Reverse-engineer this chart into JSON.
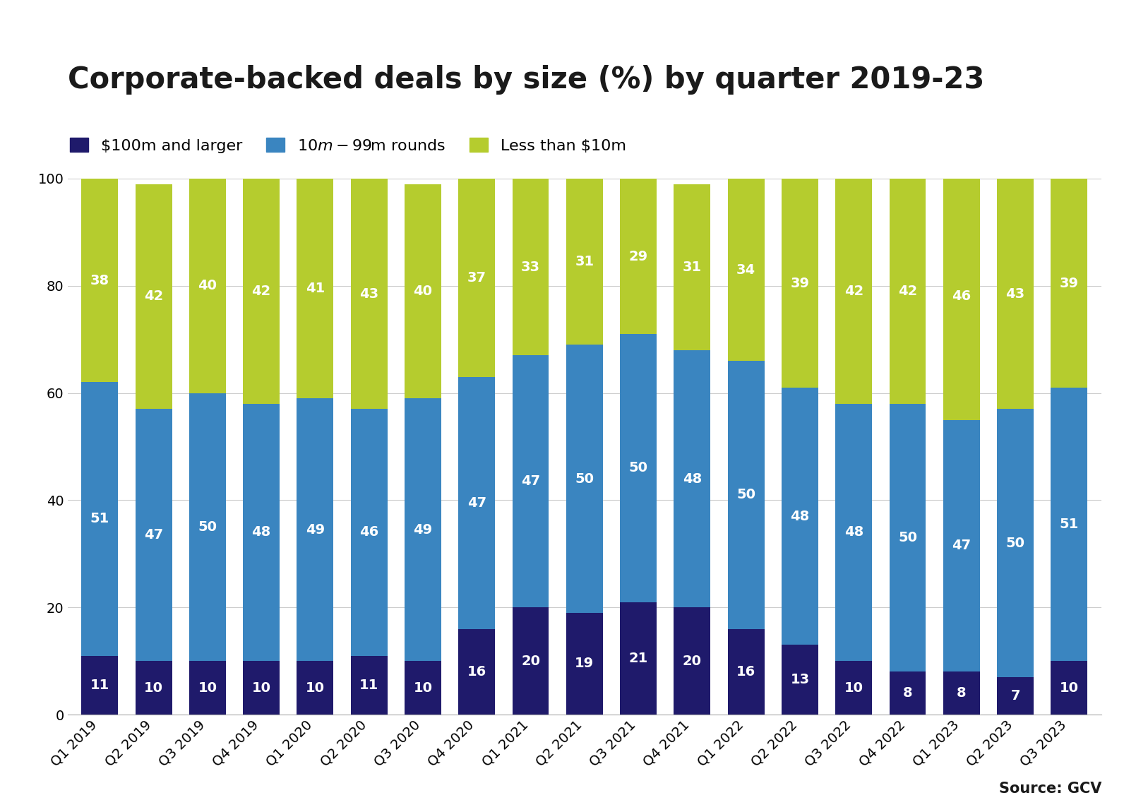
{
  "title": "Corporate-backed deals by size (%) by quarter 2019-23",
  "source": "Source: GCV",
  "categories": [
    "Q1 2019",
    "Q2 2019",
    "Q3 2019",
    "Q4 2019",
    "Q1 2020",
    "Q2 2020",
    "Q3 2020",
    "Q4 2020",
    "Q1 2021",
    "Q2 2021",
    "Q3 2021",
    "Q4 2021",
    "Q1 2022",
    "Q2 2022",
    "Q3 2022",
    "Q4 2022",
    "Q1 2023",
    "Q2 2023",
    "Q3 2023"
  ],
  "bottom_values": [
    11,
    10,
    10,
    10,
    10,
    11,
    10,
    16,
    20,
    19,
    21,
    20,
    16,
    13,
    10,
    8,
    8,
    7,
    10
  ],
  "mid_values": [
    51,
    47,
    50,
    48,
    49,
    46,
    49,
    47,
    47,
    50,
    50,
    48,
    50,
    48,
    48,
    50,
    47,
    50,
    51
  ],
  "top_values": [
    38,
    42,
    40,
    42,
    41,
    43,
    40,
    37,
    33,
    31,
    29,
    31,
    34,
    39,
    42,
    42,
    46,
    43,
    39
  ],
  "bottom_color": "#1f1a6b",
  "mid_color": "#3a85c0",
  "top_color": "#b5cc2e",
  "legend_labels": [
    "$100m and larger",
    "$10m - $99m rounds",
    "Less than $10m"
  ],
  "ylim": [
    0,
    100
  ],
  "yticks": [
    0,
    20,
    40,
    60,
    80,
    100
  ],
  "title_fontsize": 30,
  "legend_fontsize": 16,
  "tick_fontsize": 14,
  "label_fontsize": 14,
  "background_color": "#ffffff",
  "grid_color": "#cccccc",
  "source_fontsize": 15
}
